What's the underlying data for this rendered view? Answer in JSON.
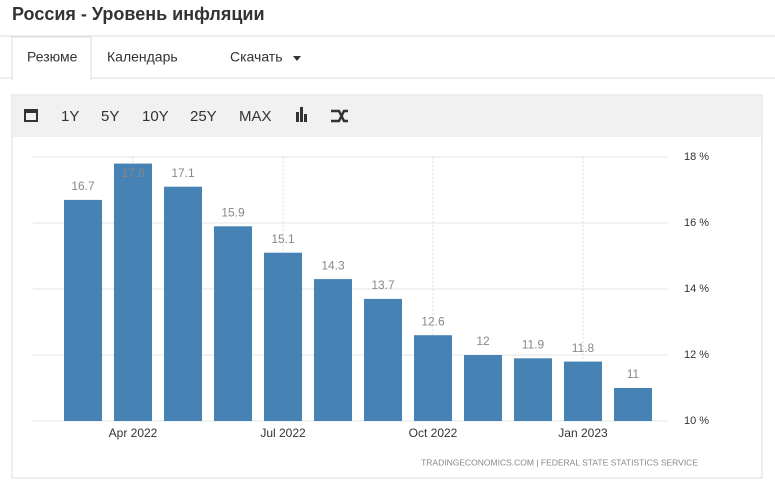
{
  "header": {
    "title": "Россия - Уровень инфляции"
  },
  "tabs": [
    "Резюме",
    "Календарь",
    "Скачать"
  ],
  "toolbar": [
    "1Y",
    "5Y",
    "10Y",
    "25Y",
    "MAX"
  ],
  "source": "TRADINGECONOMICS.COM  |  FEDERAL STATE STATISTICS SERVICE",
  "chart_data": {
    "type": "bar",
    "categories": [
      null,
      "Apr 2022",
      null,
      null,
      "Jul 2022",
      null,
      null,
      "Oct 2022",
      null,
      null,
      "Jan 2023",
      null
    ],
    "values": [
      16.7,
      17.8,
      17.1,
      15.9,
      15.1,
      14.3,
      13.7,
      12.6,
      12,
      11.9,
      11.8,
      11
    ],
    "color": "#4682b4",
    "ylim": [
      10,
      18
    ],
    "yticks": [
      {
        "value": 10,
        "label": "10 %"
      },
      {
        "value": 12,
        "label": "12 %"
      },
      {
        "value": 14,
        "label": "14 %"
      },
      {
        "value": 16,
        "label": "16 %"
      },
      {
        "value": 18,
        "label": "18 %"
      }
    ],
    "grid": true
  }
}
